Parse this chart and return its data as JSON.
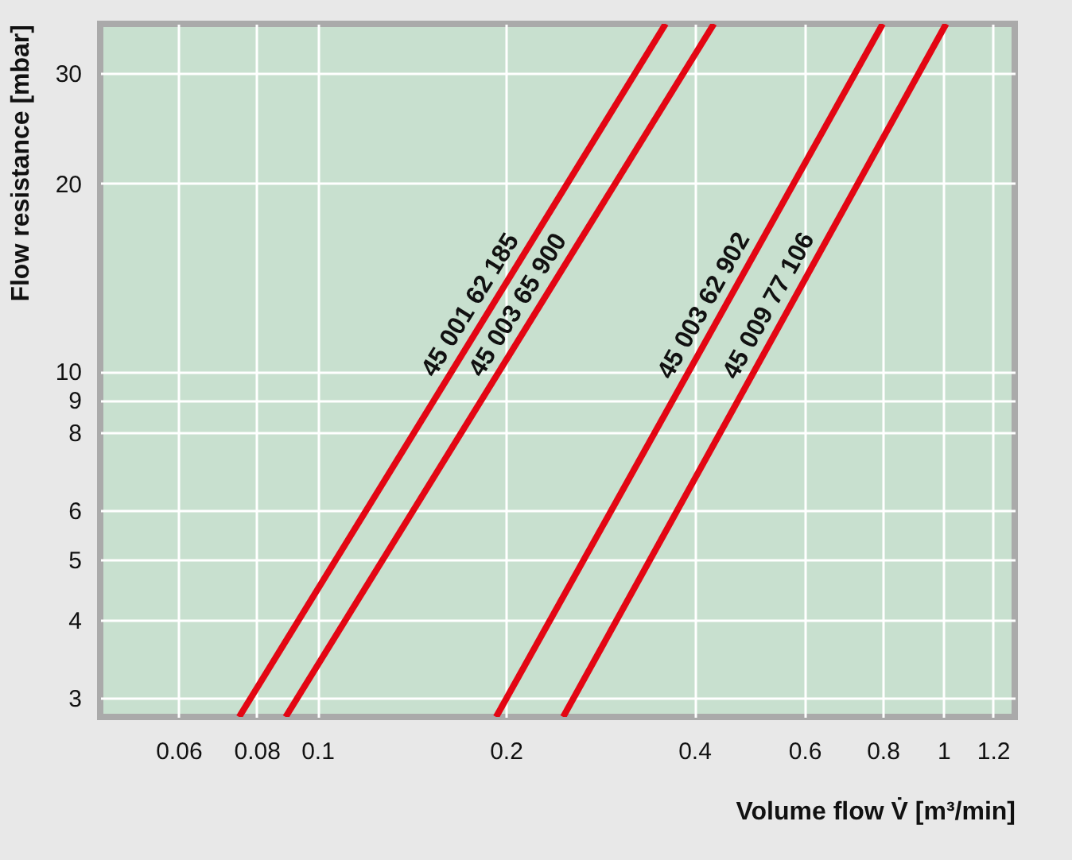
{
  "chart_data": {
    "type": "line",
    "xlabel": "Volume flow V̇  [m³/min]",
    "ylabel": "Flow resistance [mbar]",
    "log": "xy",
    "grid": true,
    "legend": false,
    "marker": "none",
    "line_style": "solid",
    "xlim": [
      0.045,
      1.3
    ],
    "xticks": [
      0.06,
      0.08,
      0.1,
      0.2,
      0.4,
      0.6,
      0.8,
      1,
      1.2
    ],
    "ylim": [
      2.8,
      36
    ],
    "yticks": [
      3,
      4,
      5,
      6,
      8,
      9,
      10,
      20,
      30
    ],
    "series": [
      {
        "name": "45 001 62 185",
        "color": "#e30613",
        "x": [
          0.075,
          0.36
        ],
        "values": [
          2.8,
          36
        ]
      },
      {
        "name": "45 003 65 900",
        "color": "#e30613",
        "x": [
          0.089,
          0.43
        ],
        "values": [
          2.8,
          36
        ]
      },
      {
        "name": "45 003 62 902",
        "color": "#e30613",
        "x": [
          0.193,
          0.8
        ],
        "values": [
          2.8,
          36
        ]
      },
      {
        "name": "45 009 77 106",
        "color": "#e30613",
        "x": [
          0.247,
          1.01
        ],
        "values": [
          2.8,
          36
        ]
      }
    ]
  }
}
